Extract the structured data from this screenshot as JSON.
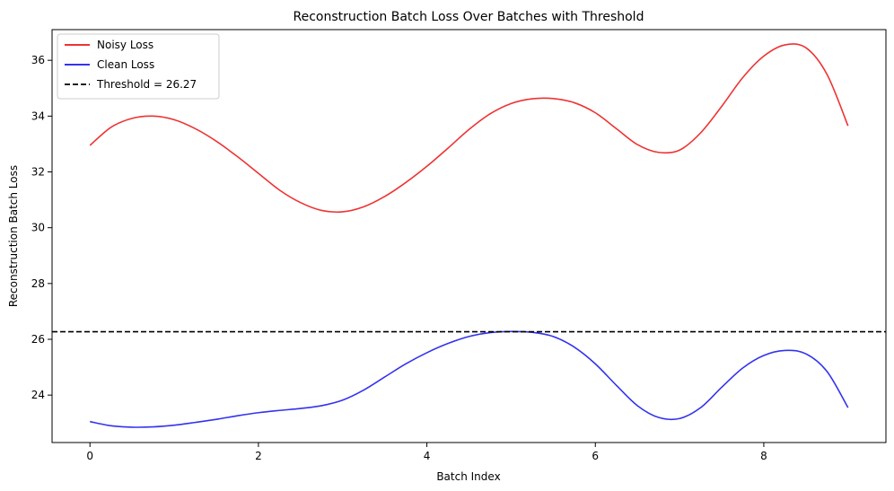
{
  "chart_data": {
    "type": "line",
    "title": "Reconstruction Batch Loss Over Batches with Threshold",
    "xlabel": "Batch Index",
    "ylabel": "Reconstruction Batch Loss",
    "xlim": [
      -0.45,
      9.45
    ],
    "ylim": [
      22.3,
      37.1
    ],
    "xticks": [
      0,
      2,
      4,
      6,
      8
    ],
    "yticks": [
      24,
      26,
      28,
      30,
      32,
      34,
      36
    ],
    "grid": false,
    "legend_position": "top-left",
    "series": [
      {
        "name": "Noisy Loss",
        "color": "#ee3333",
        "x": [
          0,
          0.25,
          0.5,
          0.75,
          1,
          1.25,
          1.5,
          1.75,
          2,
          2.25,
          2.5,
          2.75,
          3,
          3.25,
          3.5,
          3.75,
          4,
          4.25,
          4.5,
          4.75,
          5,
          5.25,
          5.5,
          5.75,
          6,
          6.25,
          6.5,
          6.75,
          7,
          7.25,
          7.5,
          7.75,
          8,
          8.25,
          8.5,
          8.75,
          9
        ],
        "y": [
          32.95,
          33.6,
          33.92,
          34.0,
          33.87,
          33.55,
          33.1,
          32.55,
          31.95,
          31.35,
          30.9,
          30.62,
          30.57,
          30.75,
          31.12,
          31.62,
          32.2,
          32.85,
          33.52,
          34.08,
          34.45,
          34.62,
          34.63,
          34.48,
          34.12,
          33.55,
          32.98,
          32.7,
          32.78,
          33.4,
          34.35,
          35.38,
          36.15,
          36.55,
          36.45,
          35.5,
          33.65
        ]
      },
      {
        "name": "Clean Loss",
        "color": "#3333ee",
        "x": [
          0,
          0.25,
          0.5,
          0.75,
          1,
          1.25,
          1.5,
          1.75,
          2,
          2.25,
          2.5,
          2.75,
          3,
          3.25,
          3.5,
          3.75,
          4,
          4.25,
          4.5,
          4.75,
          5,
          5.25,
          5.5,
          5.75,
          6,
          6.25,
          6.5,
          6.75,
          7,
          7.25,
          7.5,
          7.75,
          8,
          8.25,
          8.5,
          8.75,
          9
        ],
        "y": [
          23.05,
          22.9,
          22.85,
          22.86,
          22.92,
          23.02,
          23.13,
          23.26,
          23.37,
          23.45,
          23.52,
          23.62,
          23.82,
          24.18,
          24.65,
          25.12,
          25.52,
          25.85,
          26.1,
          26.24,
          26.28,
          26.25,
          26.1,
          25.72,
          25.12,
          24.35,
          23.62,
          23.2,
          23.16,
          23.55,
          24.28,
          24.97,
          25.42,
          25.6,
          25.48,
          24.85,
          23.55
        ]
      }
    ],
    "threshold": {
      "label": "Threshold = 26.27",
      "value": 26.27,
      "color": "#000000",
      "style": "dashed"
    }
  }
}
